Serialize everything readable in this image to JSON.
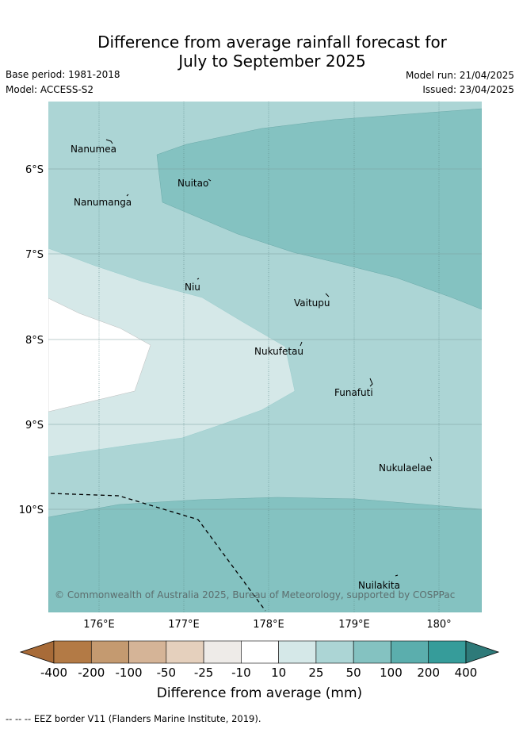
{
  "title_line1": "Difference from average rainfall forecast for",
  "title_line2": "July to September 2025",
  "base_period": "Base period: 1981-2018",
  "model": "Model: ACCESS-S2",
  "model_run": "Model run: 21/04/2025",
  "issued": "Issued: 23/04/2025",
  "lat_labels": [
    "6°S",
    "7°S",
    "8°S",
    "9°S",
    "10°S"
  ],
  "lon_labels": [
    "176°E",
    "177°E",
    "178°E",
    "179°E",
    "180°"
  ],
  "islands": [
    "Nanumea",
    "Nuitao",
    "Nanumanga",
    "Niu",
    "Vaitupu",
    "Nukufetau",
    "Funafuti",
    "Nukulaelae",
    "Nuilakita"
  ],
  "copyright": "© Commonwealth of Australia 2025, Bureau of Meteorology, supported by COSPPac",
  "colorbar": {
    "ticks": [
      "-400",
      "-200",
      "-100",
      "-50",
      "-25",
      "-10",
      "10",
      "25",
      "50",
      "100",
      "200",
      "400"
    ],
    "colors": [
      "#a86b38",
      "#b37a45",
      "#c49a70",
      "#d5b497",
      "#e5d0bd",
      "#eeebe8",
      "#ffffff",
      "#d5e8e8",
      "#acd5d5",
      "#84c2c1",
      "#5baead",
      "#369c9a",
      "#2e7a79"
    ],
    "label": "Difference from average (mm)"
  },
  "legend_note": "--  --  -- EEZ border V11 (Flanders Marine Institute, 2019)."
}
